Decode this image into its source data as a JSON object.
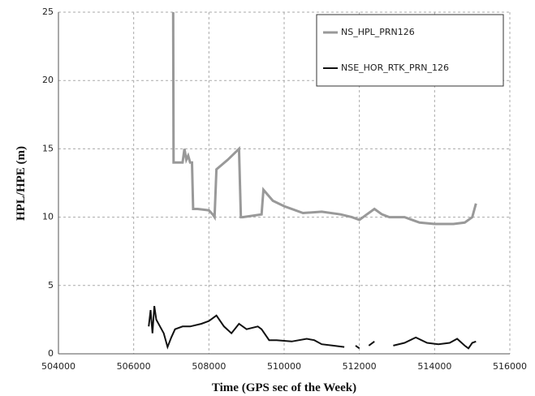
{
  "chart_data": {
    "type": "line",
    "xlabel": "Time (GPS sec of the Week)",
    "ylabel": "HPL/HPE (m)",
    "xlim": [
      504000,
      516000
    ],
    "xticks": [
      504000,
      506000,
      508000,
      510000,
      512000,
      514000,
      516000
    ],
    "ylim": [
      0,
      25
    ],
    "yticks": [
      0,
      5,
      10,
      15,
      20,
      25
    ],
    "grid": true,
    "legend": "upper right",
    "series": [
      {
        "name": "NS_HPL_PRN126",
        "color": "#999999",
        "x": [
          507050,
          507060,
          507100,
          507300,
          507350,
          507400,
          507450,
          507500,
          507550,
          507580,
          507700,
          508000,
          508100,
          508150,
          508200,
          508500,
          508800,
          508850,
          508900,
          509400,
          509450,
          509700,
          510000,
          510500,
          511000,
          511500,
          511800,
          512000,
          512200,
          512400,
          512600,
          512800,
          513200,
          513600,
          514000,
          514500,
          514800,
          515000,
          515100
        ],
        "values": [
          25,
          14,
          14,
          14,
          15,
          14.2,
          14.5,
          14,
          14,
          10.6,
          10.6,
          10.5,
          10.2,
          10,
          13.5,
          14.2,
          15,
          10,
          10,
          10.2,
          12,
          11.2,
          10.8,
          10.3,
          10.4,
          10.2,
          10,
          9.8,
          10.2,
          10.6,
          10.2,
          10,
          10,
          9.6,
          9.5,
          9.5,
          9.6,
          10,
          11
        ]
      },
      {
        "name": "NSE_HOR_RTK_PRN_126",
        "color": "#111111",
        "x": [
          506400,
          506450,
          506500,
          506550,
          506600,
          506700,
          506800,
          506900,
          507000,
          507100,
          507300,
          507500,
          507800,
          508000,
          508200,
          508400,
          508600,
          508800,
          509000,
          509300,
          509400,
          509600,
          509800,
          510200,
          510600,
          510800,
          511000,
          511300,
          511600,
          511700,
          511900,
          512000,
          512100,
          512250,
          512400,
          512600,
          512900,
          513200,
          513500,
          513800,
          514100,
          514400,
          514600,
          514800,
          514900,
          515000,
          515100
        ],
        "values": [
          2,
          3.2,
          1.5,
          3.5,
          2.5,
          2,
          1.5,
          0.5,
          1.2,
          1.8,
          2,
          2,
          2.2,
          2.4,
          2.8,
          2,
          1.5,
          2.2,
          1.8,
          2,
          1.8,
          1,
          1,
          0.9,
          1.1,
          1,
          0.7,
          0.6,
          0.5,
          null,
          0.6,
          0.4,
          null,
          0.6,
          0.9,
          null,
          0.6,
          0.8,
          1.2,
          0.8,
          0.7,
          0.8,
          1.1,
          0.6,
          0.4,
          0.8,
          0.9
        ]
      }
    ]
  }
}
